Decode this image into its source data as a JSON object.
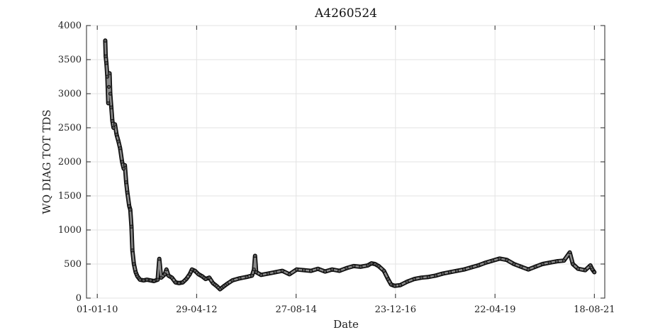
{
  "chart_data": {
    "type": "scatter",
    "title": "A4260524",
    "xlabel": "Date",
    "ylabel": "WQ DIAG TOT TDS",
    "xlim": [
      "2009-10-01",
      "2021-11-15"
    ],
    "ylim": [
      0,
      4000
    ],
    "x_ticks": [
      "2010-01-01",
      "2012-04-29",
      "2014-08-27",
      "2016-12-23",
      "2019-04-22",
      "2021-08-18"
    ],
    "x_tick_labels": [
      "01-01-10",
      "29-04-12",
      "27-08-14",
      "23-12-16",
      "22-04-19",
      "18-08-21"
    ],
    "y_ticks": [
      0,
      500,
      1000,
      1500,
      2000,
      2500,
      3000,
      3500,
      4000
    ],
    "grid": true,
    "series": [
      {
        "color": "#000000",
        "points": [
          [
            "2010-03-10",
            3780
          ],
          [
            "2010-03-14",
            3550
          ],
          [
            "2010-03-20",
            3450
          ],
          [
            "2010-03-28",
            3250
          ],
          [
            "2010-04-05",
            2860
          ],
          [
            "2010-04-10",
            3100
          ],
          [
            "2010-04-16",
            3300
          ],
          [
            "2010-04-22",
            3000
          ],
          [
            "2010-05-01",
            2800
          ],
          [
            "2010-05-10",
            2600
          ],
          [
            "2010-05-20",
            2500
          ],
          [
            "2010-06-01",
            2550
          ],
          [
            "2010-06-15",
            2400
          ],
          [
            "2010-07-01",
            2300
          ],
          [
            "2010-07-15",
            2200
          ],
          [
            "2010-08-01",
            2000
          ],
          [
            "2010-08-15",
            1900
          ],
          [
            "2010-08-25",
            1950
          ],
          [
            "2010-09-05",
            1700
          ],
          [
            "2010-09-15",
            1550
          ],
          [
            "2010-10-01",
            1350
          ],
          [
            "2010-10-10",
            1300
          ],
          [
            "2010-10-20",
            1050
          ],
          [
            "2010-10-28",
            700
          ],
          [
            "2010-11-10",
            500
          ],
          [
            "2010-11-25",
            380
          ],
          [
            "2010-12-10",
            320
          ],
          [
            "2011-01-01",
            270
          ],
          [
            "2011-02-01",
            260
          ],
          [
            "2011-03-01",
            270
          ],
          [
            "2011-04-01",
            260
          ],
          [
            "2011-05-01",
            250
          ],
          [
            "2011-06-01",
            270
          ],
          [
            "2011-06-15",
            575
          ],
          [
            "2011-07-01",
            300
          ],
          [
            "2011-08-01",
            350
          ],
          [
            "2011-08-15",
            420
          ],
          [
            "2011-09-01",
            330
          ],
          [
            "2011-10-01",
            300
          ],
          [
            "2011-11-01",
            230
          ],
          [
            "2011-12-01",
            220
          ],
          [
            "2012-01-01",
            230
          ],
          [
            "2012-02-01",
            280
          ],
          [
            "2012-03-01",
            350
          ],
          [
            "2012-03-20",
            420
          ],
          [
            "2012-04-15",
            400
          ],
          [
            "2012-05-15",
            350
          ],
          [
            "2012-06-15",
            320
          ],
          [
            "2012-07-15",
            280
          ],
          [
            "2012-08-15",
            300
          ],
          [
            "2012-09-15",
            220
          ],
          [
            "2012-10-15",
            180
          ],
          [
            "2012-11-15",
            130
          ],
          [
            "2012-12-15",
            170
          ],
          [
            "2013-01-15",
            210
          ],
          [
            "2013-03-01",
            260
          ],
          [
            "2013-05-01",
            290
          ],
          [
            "2013-07-01",
            310
          ],
          [
            "2013-08-15",
            330
          ],
          [
            "2013-09-01",
            420
          ],
          [
            "2013-09-10",
            620
          ],
          [
            "2013-09-20",
            380
          ],
          [
            "2013-11-01",
            340
          ],
          [
            "2014-01-01",
            360
          ],
          [
            "2014-03-01",
            380
          ],
          [
            "2014-05-01",
            400
          ],
          [
            "2014-07-01",
            350
          ],
          [
            "2014-09-01",
            420
          ],
          [
            "2014-11-01",
            410
          ],
          [
            "2015-01-01",
            400
          ],
          [
            "2015-03-01",
            430
          ],
          [
            "2015-05-01",
            390
          ],
          [
            "2015-07-01",
            420
          ],
          [
            "2015-09-01",
            400
          ],
          [
            "2015-11-01",
            440
          ],
          [
            "2016-01-01",
            470
          ],
          [
            "2016-03-01",
            460
          ],
          [
            "2016-05-01",
            480
          ],
          [
            "2016-06-01",
            510
          ],
          [
            "2016-07-01",
            500
          ],
          [
            "2016-08-01",
            470
          ],
          [
            "2016-09-15",
            400
          ],
          [
            "2016-10-20",
            280
          ],
          [
            "2016-11-15",
            200
          ],
          [
            "2016-12-15",
            180
          ],
          [
            "2017-02-01",
            190
          ],
          [
            "2017-04-01",
            240
          ],
          [
            "2017-06-01",
            280
          ],
          [
            "2017-08-01",
            300
          ],
          [
            "2017-10-01",
            310
          ],
          [
            "2017-12-01",
            330
          ],
          [
            "2018-02-01",
            360
          ],
          [
            "2018-04-01",
            380
          ],
          [
            "2018-06-01",
            400
          ],
          [
            "2018-08-01",
            420
          ],
          [
            "2018-10-01",
            450
          ],
          [
            "2018-12-01",
            480
          ],
          [
            "2019-02-01",
            520
          ],
          [
            "2019-04-01",
            550
          ],
          [
            "2019-06-01",
            580
          ],
          [
            "2019-08-01",
            560
          ],
          [
            "2019-10-01",
            500
          ],
          [
            "2019-12-01",
            460
          ],
          [
            "2020-02-01",
            420
          ],
          [
            "2020-04-01",
            460
          ],
          [
            "2020-06-01",
            500
          ],
          [
            "2020-08-01",
            520
          ],
          [
            "2020-10-01",
            540
          ],
          [
            "2020-12-01",
            550
          ],
          [
            "2021-01-20",
            670
          ],
          [
            "2021-02-15",
            500
          ],
          [
            "2021-04-01",
            430
          ],
          [
            "2021-06-01",
            410
          ],
          [
            "2021-07-15",
            480
          ],
          [
            "2021-08-01",
            420
          ],
          [
            "2021-08-18",
            380
          ]
        ]
      }
    ]
  }
}
